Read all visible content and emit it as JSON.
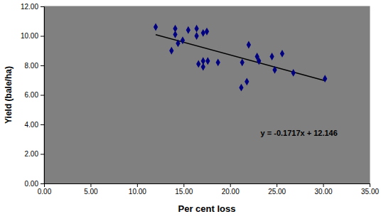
{
  "chart_data": {
    "type": "scatter",
    "x_label": "Per cent loss",
    "y_label": "Yield (bale/ha)",
    "x": [
      12.0,
      13.7,
      14.1,
      14.1,
      14.4,
      14.9,
      15.5,
      16.4,
      16.4,
      16.6,
      17.1,
      17.1,
      17.1,
      17.5,
      17.6,
      18.7,
      21.2,
      21.3,
      21.8,
      22.0,
      22.9,
      23.1,
      24.5,
      24.8,
      25.6,
      26.8,
      30.2
    ],
    "values": [
      10.6,
      9.0,
      10.5,
      10.1,
      9.5,
      9.7,
      10.4,
      10.5,
      10.0,
      8.1,
      10.2,
      8.3,
      7.9,
      10.3,
      8.3,
      8.2,
      6.5,
      8.2,
      6.9,
      9.4,
      8.6,
      8.3,
      8.6,
      7.7,
      8.8,
      7.5,
      7.1
    ],
    "color": "#000080",
    "marker": "diamond",
    "trendline": {
      "slope": -0.1717,
      "intercept": 12.146,
      "label": "y = -0.1717x + 12.146"
    },
    "xlim": [
      0,
      35
    ],
    "ylim": [
      0,
      12
    ],
    "xticks": [
      {
        "value": 0,
        "label": "0.00"
      },
      {
        "value": 5,
        "label": "5.00"
      },
      {
        "value": 10,
        "label": "10.00"
      },
      {
        "value": 15,
        "label": "15.00"
      },
      {
        "value": 20,
        "label": "20.00"
      },
      {
        "value": 25,
        "label": "25.00"
      },
      {
        "value": 30,
        "label": "30.00"
      },
      {
        "value": 35,
        "label": "35.00"
      }
    ],
    "yticks": [
      {
        "value": 0,
        "label": "0.00"
      },
      {
        "value": 2,
        "label": "2.00"
      },
      {
        "value": 4,
        "label": "4.00"
      },
      {
        "value": 6,
        "label": "6.00"
      },
      {
        "value": 8,
        "label": "8.00"
      },
      {
        "value": 10,
        "label": "10.00"
      },
      {
        "value": 12,
        "label": "12.00"
      }
    ],
    "grid": false
  }
}
